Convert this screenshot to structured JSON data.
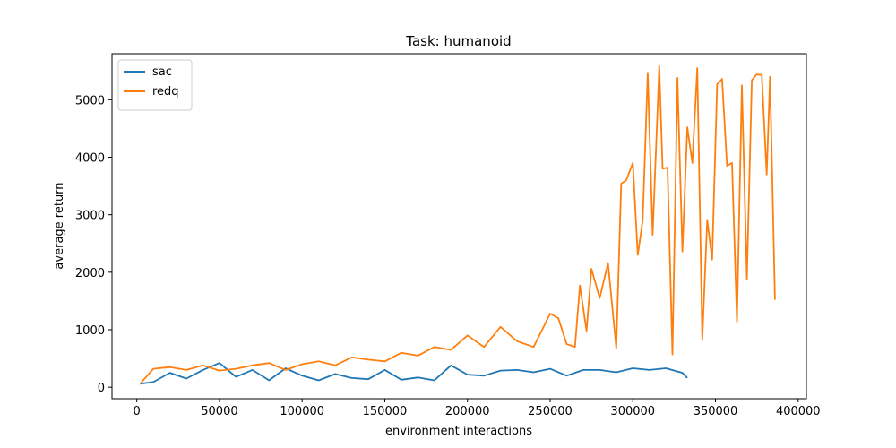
{
  "chart_data": {
    "type": "line",
    "title": "Task: humanoid",
    "xlabel": "environment interactions",
    "ylabel": "average return",
    "xlim": [
      -15000,
      405000
    ],
    "ylim": [
      -200,
      5800
    ],
    "xticks": [
      0,
      50000,
      100000,
      150000,
      200000,
      250000,
      300000,
      350000,
      400000
    ],
    "xtick_labels": [
      "0",
      "50000",
      "100000",
      "150000",
      "200000",
      "250000",
      "300000",
      "350000",
      "400000"
    ],
    "yticks": [
      0,
      1000,
      2000,
      3000,
      4000,
      5000
    ],
    "ytick_labels": [
      "0",
      "1000",
      "2000",
      "3000",
      "4000",
      "5000"
    ],
    "grid": false,
    "legend": {
      "position": "top-left"
    },
    "series": [
      {
        "name": "sac",
        "color": "#1f77b4",
        "x": [
          2000,
          10000,
          20000,
          30000,
          40000,
          50000,
          60000,
          70000,
          80000,
          90000,
          100000,
          110000,
          120000,
          130000,
          140000,
          150000,
          160000,
          170000,
          180000,
          190000,
          200000,
          210000,
          220000,
          230000,
          240000,
          250000,
          260000,
          270000,
          280000,
          290000,
          300000,
          310000,
          320000,
          330000,
          333000
        ],
        "y": [
          60,
          90,
          250,
          150,
          300,
          420,
          180,
          300,
          120,
          330,
          200,
          120,
          230,
          160,
          140,
          300,
          130,
          170,
          120,
          380,
          220,
          200,
          290,
          300,
          260,
          320,
          200,
          300,
          300,
          260,
          330,
          300,
          330,
          250,
          160
        ]
      },
      {
        "name": "redq",
        "color": "#ff7f0e",
        "x": [
          2000,
          10000,
          20000,
          30000,
          40000,
          50000,
          60000,
          70000,
          80000,
          90000,
          100000,
          110000,
          120000,
          130000,
          140000,
          150000,
          160000,
          170000,
          180000,
          190000,
          200000,
          210000,
          220000,
          230000,
          240000,
          250000,
          255000,
          260000,
          265000,
          268000,
          272000,
          275000,
          280000,
          285000,
          290000,
          293000,
          296000,
          300000,
          303000,
          306000,
          309000,
          312000,
          316000,
          318000,
          321000,
          324000,
          327000,
          330000,
          333000,
          336000,
          339000,
          342000,
          345000,
          348000,
          351000,
          354000,
          357000,
          360000,
          363000,
          366000,
          369000,
          372000,
          375000,
          378000,
          381000,
          383000,
          386000
        ],
        "y": [
          60,
          320,
          350,
          300,
          380,
          290,
          320,
          380,
          420,
          300,
          400,
          450,
          380,
          520,
          480,
          450,
          600,
          550,
          700,
          650,
          900,
          700,
          1050,
          800,
          700,
          1280,
          1200,
          750,
          700,
          1770,
          980,
          2060,
          1550,
          2160,
          680,
          3540,
          3600,
          3900,
          2300,
          2900,
          5470,
          2650,
          5590,
          3800,
          3820,
          570,
          5380,
          2360,
          4520,
          3900,
          5550,
          830,
          2910,
          2220,
          5270,
          5360,
          3850,
          3900,
          1140,
          5250,
          1880,
          5340,
          5440,
          5430,
          3700,
          5400,
          1520
        ]
      }
    ]
  }
}
